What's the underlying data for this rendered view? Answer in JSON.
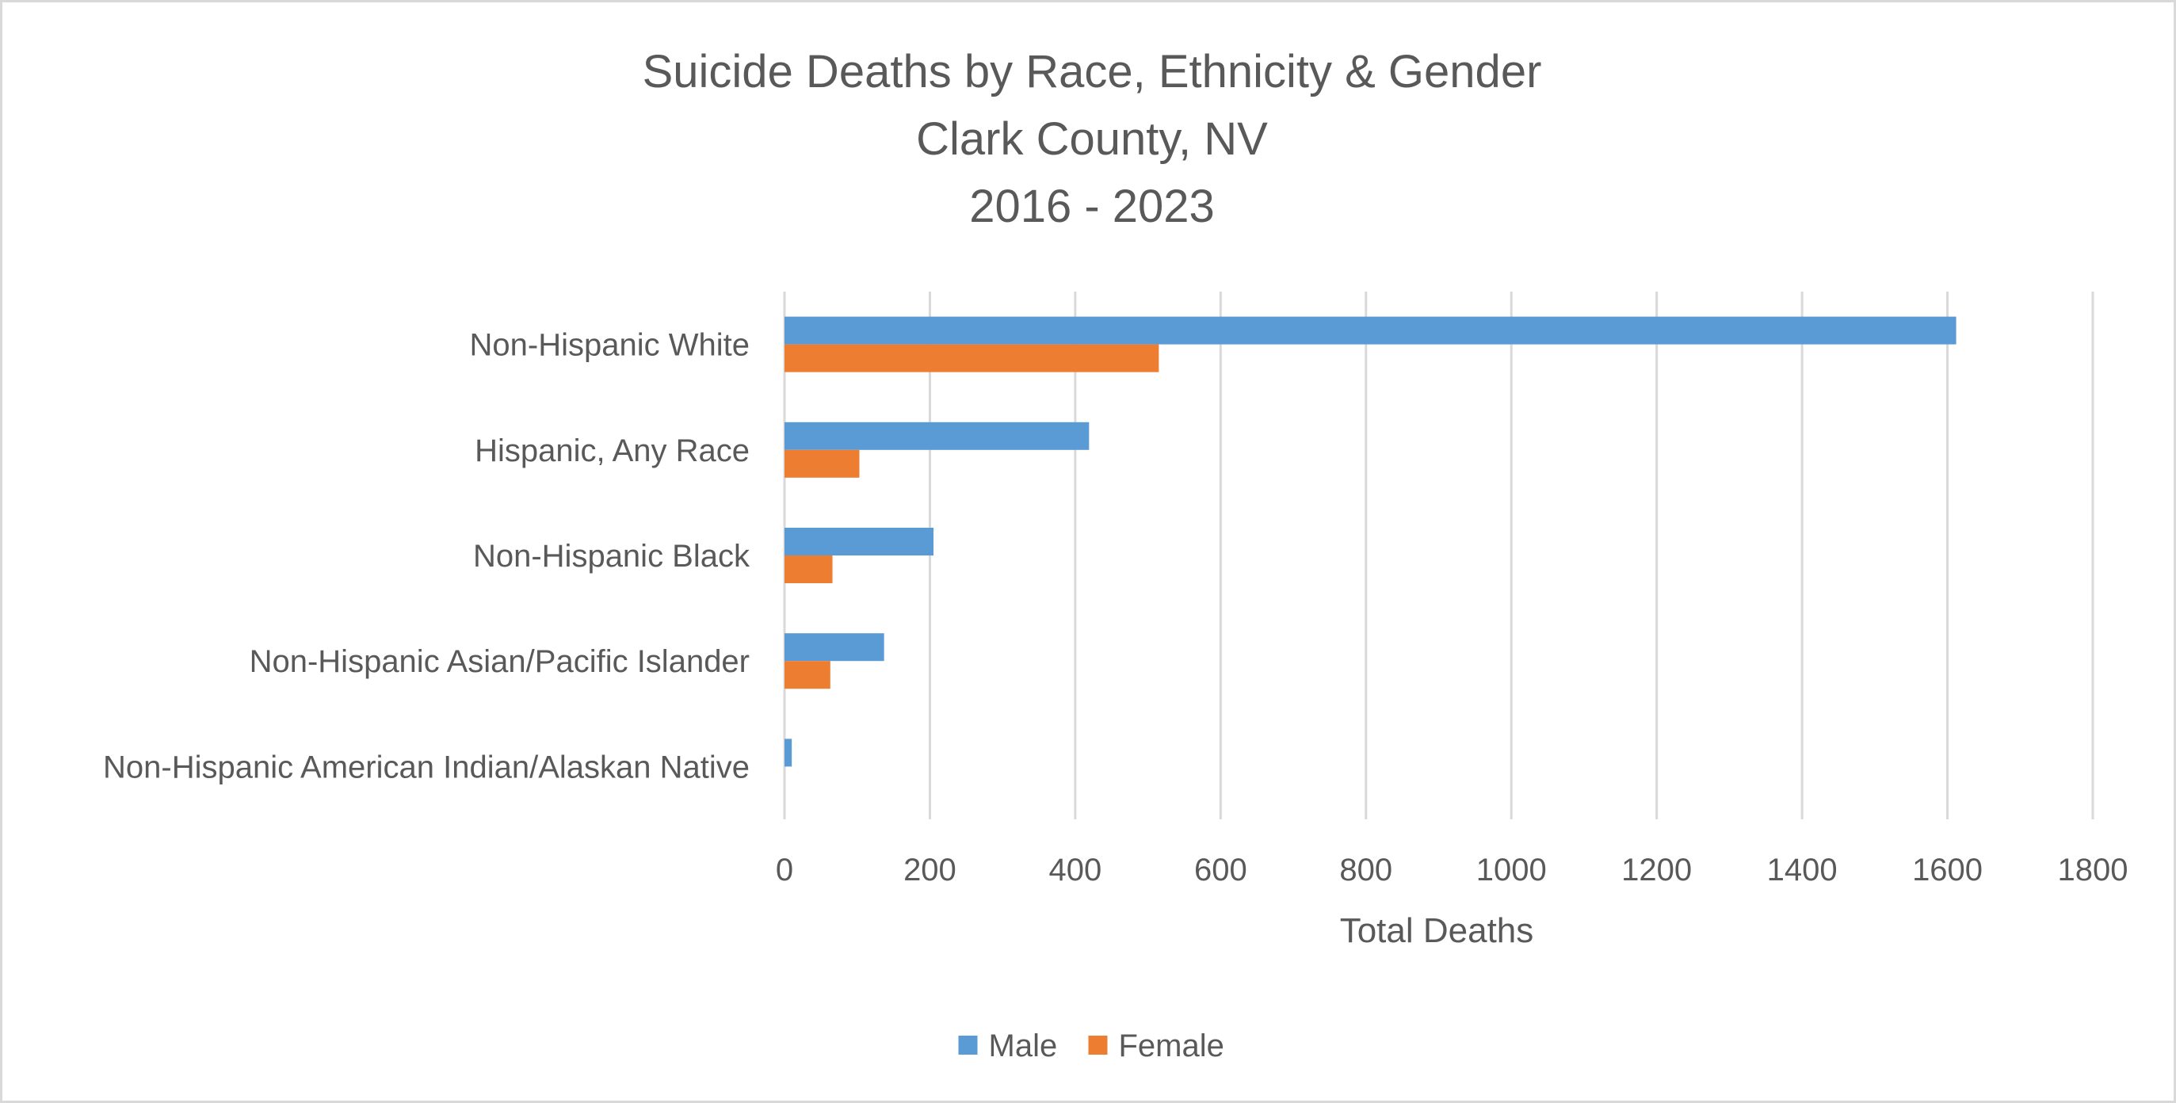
{
  "chart_data": {
    "type": "bar",
    "orientation": "horizontal",
    "title": [
      "Suicide Deaths by Race, Ethnicity & Gender",
      "Clark County, NV",
      "2016 - 2023"
    ],
    "categories": [
      "Non-Hispanic White",
      "Hispanic, Any Race",
      "Non-Hispanic Black",
      "Non-Hispanic Asian/Pacific Islander",
      "Non-Hispanic American Indian/Alaskan Native"
    ],
    "series": [
      {
        "name": "Male",
        "color": "#5b9bd5",
        "values": [
          1612,
          419,
          205,
          137,
          10
        ]
      },
      {
        "name": "Female",
        "color": "#ed7d31",
        "values": [
          515,
          103,
          66,
          63,
          0
        ]
      }
    ],
    "xlabel": "Total Deaths",
    "ylabel": "",
    "xlim": [
      0,
      1800
    ],
    "xticks": [
      "0",
      "200",
      "400",
      "600",
      "800",
      "1000",
      "1200",
      "1400",
      "1600",
      "1800"
    ],
    "grid": "vertical gridlines",
    "legend_position": "bottom"
  }
}
